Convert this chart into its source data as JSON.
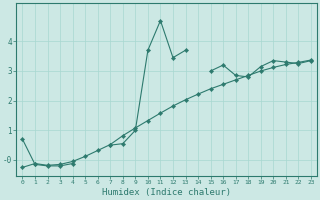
{
  "xlabel": "Humidex (Indice chaleur)",
  "background_color": "#cce8e4",
  "line_color": "#2d7a6e",
  "x_data": [
    0,
    1,
    2,
    3,
    4,
    5,
    6,
    7,
    8,
    9,
    10,
    11,
    12,
    13,
    14,
    15,
    16,
    17,
    18,
    19,
    20,
    21,
    22,
    23
  ],
  "y_main": [
    0.7,
    -0.15,
    -0.2,
    -0.2,
    -0.12,
    null,
    null,
    0.5,
    0.55,
    1.0,
    3.7,
    4.7,
    3.45,
    3.7,
    null,
    3.0,
    3.2,
    2.85,
    2.8,
    3.15,
    3.35,
    3.3,
    3.25,
    3.35
  ],
  "y_trend": [
    -0.25,
    -0.12,
    -0.18,
    -0.15,
    -0.05,
    0.12,
    0.32,
    0.52,
    0.82,
    1.08,
    1.33,
    1.58,
    1.82,
    2.03,
    2.22,
    2.4,
    2.55,
    2.7,
    2.85,
    3.0,
    3.12,
    3.22,
    3.29,
    3.37
  ],
  "ylim": [
    -0.55,
    5.3
  ],
  "xlim": [
    -0.5,
    23.5
  ],
  "yticks": [
    0,
    1,
    2,
    3,
    4
  ],
  "ytick_labels": [
    "-0",
    "1",
    "2",
    "3",
    "4"
  ],
  "xticks": [
    0,
    1,
    2,
    3,
    4,
    5,
    6,
    7,
    8,
    9,
    10,
    11,
    12,
    13,
    14,
    15,
    16,
    17,
    18,
    19,
    20,
    21,
    22,
    23
  ],
  "grid_color": "#a8d8d0",
  "marker": "D",
  "markersize": 2.2,
  "linewidth": 0.8
}
